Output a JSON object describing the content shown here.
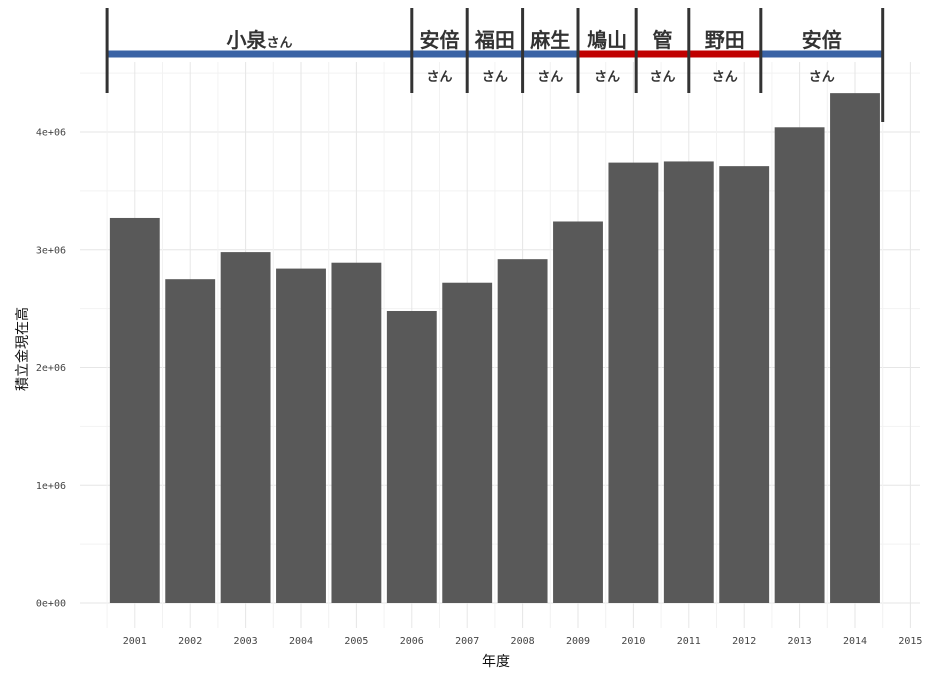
{
  "chart_data": {
    "type": "bar",
    "xlabel": "年度",
    "ylabel": "積立金現在高",
    "categories": [
      "2001",
      "2002",
      "2003",
      "2004",
      "2005",
      "2006",
      "2007",
      "2008",
      "2009",
      "2010",
      "2011",
      "2012",
      "2013",
      "2014"
    ],
    "values": [
      3270000,
      2750000,
      2980000,
      2840000,
      2890000,
      2480000,
      2720000,
      2920000,
      3240000,
      3740000,
      3750000,
      3710000,
      4040000,
      4330000
    ],
    "x_ticks": [
      "2001",
      "2002",
      "2003",
      "2004",
      "2005",
      "2006",
      "2007",
      "2008",
      "2009",
      "2010",
      "2011",
      "2012",
      "2013",
      "2014",
      "2015"
    ],
    "y_ticks": [
      "0e+00",
      "1e+06",
      "2e+06",
      "3e+06",
      "4e+06"
    ],
    "y_tick_values": [
      0,
      1000000,
      2000000,
      3000000,
      4000000
    ],
    "ylim": [
      0,
      4500000
    ],
    "xlim": [
      2000.5,
      2015.2
    ],
    "grid": true,
    "bar_color": "#595959",
    "prime_ministers": [
      {
        "name": "小泉",
        "suffix": "さん",
        "suffix_inline": true,
        "start": 2000.5,
        "end": 2006.0,
        "party_color": "#3a63a5"
      },
      {
        "name": "安倍",
        "suffix": "さん",
        "suffix_inline": false,
        "start": 2006.0,
        "end": 2007.0,
        "party_color": "#3a63a5"
      },
      {
        "name": "福田",
        "suffix": "さん",
        "suffix_inline": false,
        "start": 2007.0,
        "end": 2008.0,
        "party_color": "#3a63a5"
      },
      {
        "name": "麻生",
        "suffix": "さん",
        "suffix_inline": false,
        "start": 2008.0,
        "end": 2009.0,
        "party_color": "#3a63a5"
      },
      {
        "name": "鳩山",
        "suffix": "さん",
        "suffix_inline": false,
        "start": 2009.0,
        "end": 2010.05,
        "party_color": "#c00000"
      },
      {
        "name": "管",
        "suffix": "さん",
        "suffix_inline": false,
        "start": 2010.05,
        "end": 2011.0,
        "party_color": "#c00000"
      },
      {
        "name": "野田",
        "suffix": "さん",
        "suffix_inline": false,
        "start": 2011.0,
        "end": 2012.3,
        "party_color": "#c00000"
      },
      {
        "name": "安倍",
        "suffix": "さん",
        "suffix_inline": false,
        "start": 2012.3,
        "end": 2014.5,
        "party_color": "#3a63a5"
      }
    ]
  }
}
